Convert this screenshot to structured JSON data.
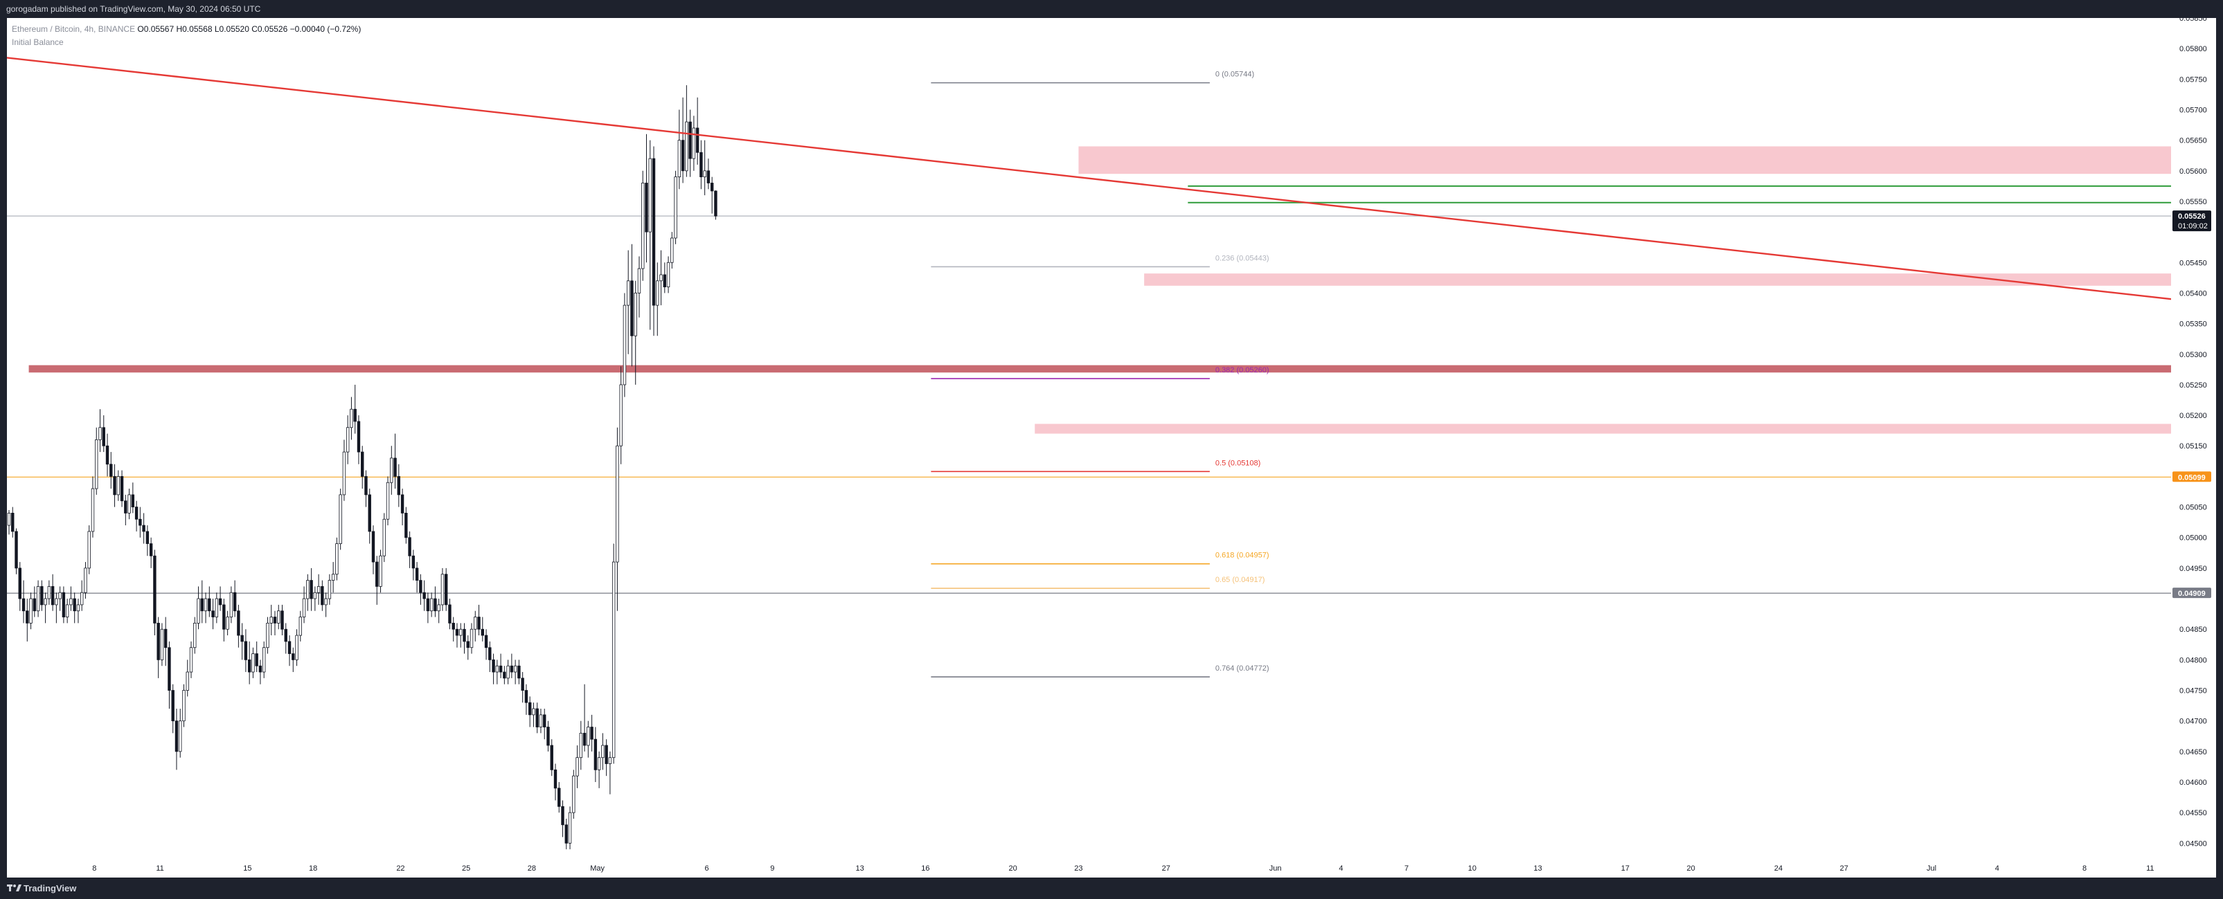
{
  "header": {
    "publish_line": "gorogadam published on TradingView.com, May 30, 2024 06:50 UTC"
  },
  "legend": {
    "symbol": "Ethereum / Bitcoin, 4h, BINANCE",
    "ohlc": "O0.05567 H0.05568 L0.05520 C0.05526 −0.00040 (−0.72%)",
    "indicator": "Initial Balance"
  },
  "footer": {
    "brand": "TradingView"
  },
  "colors": {
    "trendline": "#e53935",
    "supply_zone": "#f8c8cf",
    "key_level_band": "#c96b72",
    "support_green": "#2e9c3a",
    "orange_line": "#f5a623",
    "price_tag_bg": "#131722",
    "orange_tag_bg": "#f7931a",
    "grey_tag_bg": "#787b86"
  },
  "chart_data": {
    "type": "candlestick",
    "symbol": "Ethereum / Bitcoin",
    "timeframe": "4h",
    "exchange": "BINANCE",
    "ylim": [
      0.0448,
      0.0585
    ],
    "y_ticks": [
      "0.05850",
      "0.05800",
      "0.05750",
      "0.05700",
      "0.05650",
      "0.05600",
      "0.05550",
      "0.05450",
      "0.05400",
      "0.05350",
      "0.05300",
      "0.05250",
      "0.05200",
      "0.05150",
      "0.05050",
      "0.05000",
      "0.04950",
      "0.04850",
      "0.04800",
      "0.04750",
      "0.04700",
      "0.04650",
      "0.04600",
      "0.04550",
      "0.04500"
    ],
    "x_ticks": [
      "8",
      "11",
      "15",
      "18",
      "22",
      "25",
      "28",
      "May",
      "6",
      "9",
      "13",
      "16",
      "20",
      "23",
      "27",
      "Jun",
      "4",
      "7",
      "10",
      "13",
      "17",
      "20",
      "24",
      "27",
      "Jul",
      "4",
      "8",
      "11"
    ],
    "price_tags": [
      {
        "price": 0.05526,
        "label": "0.05526",
        "countdown": "01:09:02",
        "kind": "last"
      },
      {
        "price": 0.05099,
        "label": "0.05099",
        "kind": "orange"
      },
      {
        "price": 0.04909,
        "label": "0.04909",
        "kind": "grey"
      }
    ],
    "fib_levels": [
      {
        "level": "0",
        "price": 0.05744,
        "label": "0 (0.05744)",
        "color": "#787b86"
      },
      {
        "level": "0.236",
        "price": 0.05443,
        "label": "0.236 (0.05443)",
        "color": "#b2b5be"
      },
      {
        "level": "0.382",
        "price": 0.0526,
        "label": "0.382 (0.05260)",
        "color": "#9c27b0"
      },
      {
        "level": "0.5",
        "price": 0.05108,
        "label": "0.5 (0.05108)",
        "color": "#e53935"
      },
      {
        "level": "0.618",
        "price": 0.04957,
        "label": "0.618 (0.04957)",
        "color": "#f5a623"
      },
      {
        "level": "0.65",
        "price": 0.04917,
        "label": "0.65 (0.04917)",
        "color": "#f5c27a"
      },
      {
        "level": "0.764",
        "price": 0.04772,
        "label": "0.764 (0.04772)",
        "color": "#787b86"
      }
    ],
    "horizontal_lines": [
      {
        "price": 0.05526,
        "color": "#b2b5be"
      },
      {
        "price": 0.05099,
        "color": "#f5a623"
      },
      {
        "price": 0.04909,
        "color": "#787b86"
      },
      {
        "price": 0.05575,
        "color": "#2e9c3a",
        "start_date": "2024-05-28"
      },
      {
        "price": 0.05548,
        "color": "#2e9c3a",
        "start_date": "2024-05-28"
      }
    ],
    "zones": [
      {
        "from_date": "2024-05-23",
        "top": 0.0564,
        "bottom": 0.05595,
        "color": "#f8c8cf"
      },
      {
        "from_date": "2024-05-26",
        "top": 0.05432,
        "bottom": 0.05412,
        "color": "#f8c8cf"
      },
      {
        "from_date": "2024-04-05",
        "top": 0.05282,
        "bottom": 0.0527,
        "color": "#c96b72"
      },
      {
        "from_date": "2024-05-21",
        "top": 0.05186,
        "bottom": 0.0517,
        "color": "#f8c8cf"
      }
    ],
    "trendline": {
      "from": [
        "2024-04-04",
        0.05785
      ],
      "to": [
        "2024-07-12",
        0.0539
      ],
      "color": "#e53935"
    },
    "start_date": "2024-04-04",
    "candles": [
      [
        0.0502,
        0.05045,
        0.05005,
        0.0504
      ],
      [
        0.0504,
        0.0505,
        0.05,
        0.0501
      ],
      [
        0.0501,
        0.05015,
        0.0494,
        0.0495
      ],
      [
        0.0495,
        0.0496,
        0.0488,
        0.049
      ],
      [
        0.049,
        0.0493,
        0.0486,
        0.0488
      ],
      [
        0.0488,
        0.049,
        0.0483,
        0.0486
      ],
      [
        0.0486,
        0.0491,
        0.0485,
        0.049
      ],
      [
        0.049,
        0.0492,
        0.0487,
        0.0488
      ],
      [
        0.0488,
        0.0493,
        0.0487,
        0.0492
      ],
      [
        0.0492,
        0.0493,
        0.0488,
        0.0489
      ],
      [
        0.0489,
        0.0491,
        0.0486,
        0.049
      ],
      [
        0.049,
        0.0493,
        0.0489,
        0.0492
      ],
      [
        0.0492,
        0.0494,
        0.0488,
        0.0489
      ],
      [
        0.0489,
        0.0491,
        0.0486,
        0.049
      ],
      [
        0.049,
        0.0492,
        0.0488,
        0.0491
      ],
      [
        0.0491,
        0.0492,
        0.0486,
        0.0487
      ],
      [
        0.0487,
        0.049,
        0.0486,
        0.0489
      ],
      [
        0.0489,
        0.0492,
        0.0488,
        0.049
      ],
      [
        0.049,
        0.0491,
        0.0486,
        0.0488
      ],
      [
        0.0488,
        0.049,
        0.0486,
        0.0489
      ],
      [
        0.0489,
        0.0493,
        0.0488,
        0.0491
      ],
      [
        0.0491,
        0.0496,
        0.049,
        0.0495
      ],
      [
        0.0495,
        0.0502,
        0.0494,
        0.0501
      ],
      [
        0.0501,
        0.051,
        0.05,
        0.0508
      ],
      [
        0.0508,
        0.0518,
        0.0507,
        0.0516
      ],
      [
        0.0516,
        0.0521,
        0.0514,
        0.0518
      ],
      [
        0.0518,
        0.052,
        0.0514,
        0.0515
      ],
      [
        0.0515,
        0.0517,
        0.051,
        0.0512
      ],
      [
        0.0512,
        0.0514,
        0.0508,
        0.051
      ],
      [
        0.051,
        0.0512,
        0.0505,
        0.0507
      ],
      [
        0.0507,
        0.0511,
        0.0506,
        0.051
      ],
      [
        0.051,
        0.0511,
        0.0505,
        0.0506
      ],
      [
        0.0506,
        0.0507,
        0.0502,
        0.0504
      ],
      [
        0.0504,
        0.0508,
        0.0503,
        0.0507
      ],
      [
        0.0507,
        0.0509,
        0.0504,
        0.0505
      ],
      [
        0.0505,
        0.0506,
        0.0501,
        0.0503
      ],
      [
        0.0503,
        0.0505,
        0.05,
        0.0502
      ],
      [
        0.0502,
        0.0504,
        0.0499,
        0.0501
      ],
      [
        0.0501,
        0.0502,
        0.0497,
        0.0499
      ],
      [
        0.0499,
        0.05,
        0.0495,
        0.0497
      ],
      [
        0.0497,
        0.0498,
        0.0484,
        0.0486
      ],
      [
        0.0486,
        0.0487,
        0.0477,
        0.048
      ],
      [
        0.048,
        0.0486,
        0.0479,
        0.0485
      ],
      [
        0.0485,
        0.0487,
        0.0479,
        0.0482
      ],
      [
        0.0482,
        0.0483,
        0.0472,
        0.0475
      ],
      [
        0.0475,
        0.0476,
        0.0468,
        0.047
      ],
      [
        0.047,
        0.0472,
        0.0462,
        0.0465
      ],
      [
        0.0465,
        0.0472,
        0.0464,
        0.047
      ],
      [
        0.047,
        0.0476,
        0.0469,
        0.0475
      ],
      [
        0.0475,
        0.048,
        0.0474,
        0.0478
      ],
      [
        0.0478,
        0.0483,
        0.0477,
        0.0482
      ],
      [
        0.0482,
        0.0487,
        0.0481,
        0.0486
      ],
      [
        0.0486,
        0.0492,
        0.0485,
        0.049
      ],
      [
        0.049,
        0.0493,
        0.0486,
        0.0488
      ],
      [
        0.0488,
        0.0491,
        0.0486,
        0.049
      ],
      [
        0.049,
        0.0492,
        0.0487,
        0.0488
      ],
      [
        0.0488,
        0.049,
        0.0485,
        0.0487
      ],
      [
        0.0487,
        0.0491,
        0.0486,
        0.049
      ],
      [
        0.049,
        0.0492,
        0.0488,
        0.0489
      ],
      [
        0.0489,
        0.049,
        0.0483,
        0.0485
      ],
      [
        0.0485,
        0.0488,
        0.0484,
        0.0487
      ],
      [
        0.0487,
        0.0492,
        0.0486,
        0.0491
      ],
      [
        0.0491,
        0.0493,
        0.0487,
        0.0488
      ],
      [
        0.0488,
        0.0489,
        0.0482,
        0.0484
      ],
      [
        0.0484,
        0.0486,
        0.048,
        0.0483
      ],
      [
        0.0483,
        0.0485,
        0.0478,
        0.048
      ],
      [
        0.048,
        0.0483,
        0.0476,
        0.0478
      ],
      [
        0.0478,
        0.0482,
        0.0477,
        0.0481
      ],
      [
        0.0481,
        0.0483,
        0.0478,
        0.0479
      ],
      [
        0.0479,
        0.048,
        0.0476,
        0.0478
      ],
      [
        0.0478,
        0.0483,
        0.0477,
        0.0482
      ],
      [
        0.0482,
        0.0487,
        0.0481,
        0.0486
      ],
      [
        0.0486,
        0.0489,
        0.0484,
        0.0487
      ],
      [
        0.0487,
        0.0488,
        0.0484,
        0.0486
      ],
      [
        0.0486,
        0.0489,
        0.0485,
        0.0488
      ],
      [
        0.0488,
        0.0489,
        0.0484,
        0.0485
      ],
      [
        0.0485,
        0.0486,
        0.0481,
        0.0483
      ],
      [
        0.0483,
        0.0484,
        0.0479,
        0.0481
      ],
      [
        0.0481,
        0.0482,
        0.0478,
        0.048
      ],
      [
        0.048,
        0.0485,
        0.0479,
        0.0484
      ],
      [
        0.0484,
        0.0488,
        0.0483,
        0.0487
      ],
      [
        0.0487,
        0.0492,
        0.0486,
        0.049
      ],
      [
        0.049,
        0.0494,
        0.0488,
        0.0493
      ],
      [
        0.0493,
        0.0495,
        0.0488,
        0.049
      ],
      [
        0.049,
        0.0492,
        0.0488,
        0.0491
      ],
      [
        0.0491,
        0.0494,
        0.0489,
        0.0492
      ],
      [
        0.0492,
        0.0493,
        0.0488,
        0.0489
      ],
      [
        0.0489,
        0.0491,
        0.0487,
        0.049
      ],
      [
        0.049,
        0.0494,
        0.0489,
        0.0493
      ],
      [
        0.0493,
        0.0496,
        0.0491,
        0.0494
      ],
      [
        0.0494,
        0.05,
        0.0493,
        0.0499
      ],
      [
        0.0499,
        0.0508,
        0.0498,
        0.0507
      ],
      [
        0.0507,
        0.0516,
        0.0506,
        0.0514
      ],
      [
        0.0514,
        0.052,
        0.0512,
        0.0518
      ],
      [
        0.0518,
        0.0523,
        0.0516,
        0.0521
      ],
      [
        0.0521,
        0.0525,
        0.0517,
        0.0519
      ],
      [
        0.0519,
        0.052,
        0.0512,
        0.0514
      ],
      [
        0.0514,
        0.0515,
        0.0508,
        0.051
      ],
      [
        0.051,
        0.0511,
        0.0505,
        0.0507
      ],
      [
        0.0507,
        0.0508,
        0.0499,
        0.0501
      ],
      [
        0.0501,
        0.0502,
        0.0494,
        0.0496
      ],
      [
        0.0496,
        0.0497,
        0.0489,
        0.0492
      ],
      [
        0.0492,
        0.0498,
        0.0491,
        0.0497
      ],
      [
        0.0497,
        0.0504,
        0.0496,
        0.0503
      ],
      [
        0.0503,
        0.051,
        0.0502,
        0.0509
      ],
      [
        0.0509,
        0.0515,
        0.0507,
        0.0513
      ],
      [
        0.0513,
        0.0517,
        0.0508,
        0.051
      ],
      [
        0.051,
        0.0512,
        0.0505,
        0.0507
      ],
      [
        0.0507,
        0.0508,
        0.0502,
        0.0504
      ],
      [
        0.0504,
        0.0505,
        0.0499,
        0.05
      ],
      [
        0.05,
        0.0501,
        0.0495,
        0.0497
      ],
      [
        0.0497,
        0.0498,
        0.0493,
        0.0495
      ],
      [
        0.0495,
        0.0496,
        0.0491,
        0.0493
      ],
      [
        0.0493,
        0.0494,
        0.0489,
        0.0491
      ],
      [
        0.0491,
        0.0493,
        0.0488,
        0.049
      ],
      [
        0.049,
        0.0491,
        0.0486,
        0.0488
      ],
      [
        0.0488,
        0.0491,
        0.0487,
        0.049
      ],
      [
        0.049,
        0.0492,
        0.0487,
        0.0488
      ],
      [
        0.0488,
        0.049,
        0.0486,
        0.0489
      ],
      [
        0.0489,
        0.0495,
        0.0488,
        0.0494
      ],
      [
        0.0494,
        0.0495,
        0.0488,
        0.0489
      ],
      [
        0.0489,
        0.049,
        0.0485,
        0.0486
      ],
      [
        0.0486,
        0.0487,
        0.0483,
        0.0485
      ],
      [
        0.0485,
        0.0486,
        0.0482,
        0.0484
      ],
      [
        0.0484,
        0.0486,
        0.0482,
        0.0485
      ],
      [
        0.0485,
        0.0486,
        0.0481,
        0.0483
      ],
      [
        0.0483,
        0.0484,
        0.048,
        0.0482
      ],
      [
        0.0482,
        0.0486,
        0.0481,
        0.0485
      ],
      [
        0.0485,
        0.0488,
        0.0483,
        0.0487
      ],
      [
        0.0487,
        0.0489,
        0.0484,
        0.0485
      ],
      [
        0.0485,
        0.0487,
        0.0483,
        0.0484
      ],
      [
        0.0484,
        0.0485,
        0.048,
        0.0482
      ],
      [
        0.0482,
        0.0483,
        0.0478,
        0.048
      ],
      [
        0.048,
        0.0481,
        0.0476,
        0.0478
      ],
      [
        0.0478,
        0.048,
        0.0476,
        0.0479
      ],
      [
        0.0479,
        0.0481,
        0.0477,
        0.0478
      ],
      [
        0.0478,
        0.0479,
        0.0476,
        0.0477
      ],
      [
        0.0477,
        0.048,
        0.0476,
        0.0479
      ],
      [
        0.0479,
        0.0481,
        0.0477,
        0.0478
      ],
      [
        0.0478,
        0.048,
        0.0476,
        0.0479
      ],
      [
        0.0479,
        0.048,
        0.0476,
        0.0477
      ],
      [
        0.0477,
        0.0478,
        0.0473,
        0.0475
      ],
      [
        0.0475,
        0.0476,
        0.0471,
        0.0473
      ],
      [
        0.0473,
        0.0474,
        0.0469,
        0.0471
      ],
      [
        0.0471,
        0.0473,
        0.0469,
        0.0472
      ],
      [
        0.0472,
        0.0473,
        0.0468,
        0.0469
      ],
      [
        0.0469,
        0.0472,
        0.0468,
        0.0471
      ],
      [
        0.0471,
        0.0472,
        0.0467,
        0.0469
      ],
      [
        0.0469,
        0.047,
        0.0465,
        0.0466
      ],
      [
        0.0466,
        0.0467,
        0.0461,
        0.0462
      ],
      [
        0.0462,
        0.0463,
        0.0457,
        0.0459
      ],
      [
        0.0459,
        0.046,
        0.0455,
        0.0456
      ],
      [
        0.0456,
        0.0457,
        0.0451,
        0.0453
      ],
      [
        0.0453,
        0.0454,
        0.0449,
        0.045
      ],
      [
        0.045,
        0.0456,
        0.0449,
        0.0455
      ],
      [
        0.0455,
        0.0462,
        0.0454,
        0.0461
      ],
      [
        0.0461,
        0.0466,
        0.0459,
        0.0464
      ],
      [
        0.0464,
        0.047,
        0.0462,
        0.0468
      ],
      [
        0.0468,
        0.0476,
        0.0465,
        0.0466
      ],
      [
        0.0466,
        0.047,
        0.0464,
        0.0469
      ],
      [
        0.0469,
        0.0471,
        0.0465,
        0.0467
      ],
      [
        0.0467,
        0.0469,
        0.046,
        0.0462
      ],
      [
        0.0462,
        0.0465,
        0.0459,
        0.0464
      ],
      [
        0.0464,
        0.0468,
        0.0462,
        0.0466
      ],
      [
        0.0466,
        0.0467,
        0.0461,
        0.0463
      ],
      [
        0.0463,
        0.0465,
        0.0458,
        0.0464
      ],
      [
        0.0464,
        0.0499,
        0.0463,
        0.0496
      ],
      [
        0.0496,
        0.0518,
        0.0488,
        0.0515
      ],
      [
        0.0515,
        0.0528,
        0.0512,
        0.0525
      ],
      [
        0.0525,
        0.054,
        0.0523,
        0.0538
      ],
      [
        0.0538,
        0.0547,
        0.053,
        0.0542
      ],
      [
        0.0542,
        0.0548,
        0.0528,
        0.0533
      ],
      [
        0.0533,
        0.0542,
        0.0525,
        0.054
      ],
      [
        0.054,
        0.0546,
        0.0536,
        0.0544
      ],
      [
        0.0544,
        0.056,
        0.0542,
        0.0558
      ],
      [
        0.0558,
        0.0566,
        0.0545,
        0.055
      ],
      [
        0.055,
        0.0565,
        0.0534,
        0.0562
      ],
      [
        0.0562,
        0.0564,
        0.0533,
        0.0538
      ],
      [
        0.0538,
        0.0545,
        0.0533,
        0.0542
      ],
      [
        0.0542,
        0.0547,
        0.0538,
        0.0543
      ],
      [
        0.0543,
        0.0545,
        0.054,
        0.0541
      ],
      [
        0.0541,
        0.0546,
        0.054,
        0.0545
      ],
      [
        0.0545,
        0.055,
        0.0544,
        0.0549
      ],
      [
        0.0549,
        0.056,
        0.0548,
        0.0559
      ],
      [
        0.0559,
        0.057,
        0.0557,
        0.0565
      ],
      [
        0.0565,
        0.0572,
        0.0558,
        0.056
      ],
      [
        0.056,
        0.0574,
        0.0559,
        0.0568
      ],
      [
        0.0568,
        0.057,
        0.0559,
        0.0562
      ],
      [
        0.0562,
        0.0569,
        0.056,
        0.0567
      ],
      [
        0.0567,
        0.0572,
        0.0561,
        0.0563
      ],
      [
        0.0563,
        0.0565,
        0.0557,
        0.0559
      ],
      [
        0.0559,
        0.0565,
        0.0556,
        0.056
      ],
      [
        0.056,
        0.0562,
        0.0557,
        0.0558
      ],
      [
        0.0558,
        0.0559,
        0.0553,
        0.05567
      ],
      [
        0.05567,
        0.05568,
        0.0552,
        0.05526
      ]
    ]
  }
}
